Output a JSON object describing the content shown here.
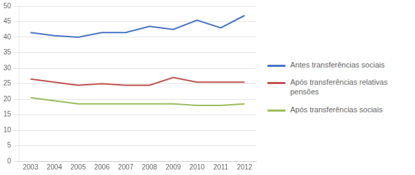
{
  "chart_data": {
    "type": "line",
    "x": [
      2003,
      2004,
      2005,
      2006,
      2007,
      2008,
      2009,
      2010,
      2011,
      2012
    ],
    "xlim": [
      2002.5,
      2012.5
    ],
    "xticks": [
      2003,
      2004,
      2005,
      2006,
      2007,
      2008,
      2009,
      2010,
      2011,
      2012
    ],
    "series": [
      {
        "name": "Antes transferências sociais",
        "color": "#4472C4",
        "values": [
          41.5,
          40.5,
          40.0,
          41.5,
          41.5,
          43.5,
          42.5,
          45.5,
          43.0,
          47.0
        ]
      },
      {
        "name": "Após transferências relativas\npensões",
        "color": "#C0504D",
        "values": [
          26.5,
          25.5,
          24.5,
          25.0,
          24.5,
          24.5,
          27.0,
          25.5,
          25.5,
          25.5
        ]
      },
      {
        "name": "Após transferências sociais",
        "color": "#9BBB59",
        "values": [
          20.5,
          19.5,
          18.5,
          18.5,
          18.5,
          18.5,
          18.5,
          18.0,
          18.0,
          18.5
        ]
      }
    ],
    "ylim": [
      0,
      50
    ],
    "yticks": [
      0,
      5,
      10,
      15,
      20,
      25,
      30,
      35,
      40,
      45,
      50
    ],
    "grid": "y",
    "legend": "right"
  }
}
